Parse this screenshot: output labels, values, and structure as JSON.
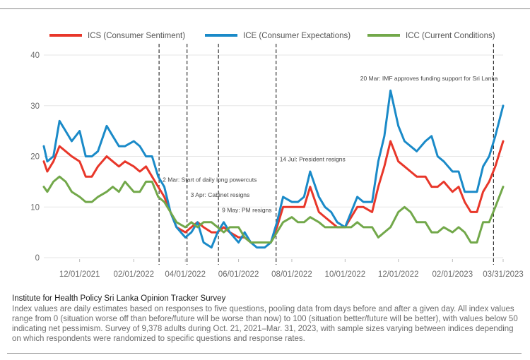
{
  "chart_data": {
    "type": "line",
    "ylim": [
      0,
      40
    ],
    "yticks": [
      0,
      10,
      20,
      30,
      40
    ],
    "x_range": [
      "2021-10-21",
      "2023-03-31"
    ],
    "x_tick_labels": [
      "12/01/2021",
      "02/01/2022",
      "04/01/2022",
      "06/01/2022",
      "08/01/2022",
      "10/01/2022",
      "12/01/2022",
      "02/01/2023",
      "03/31/2023"
    ],
    "x_tick_dates": [
      "2021-12-01",
      "2022-02-01",
      "2022-04-01",
      "2022-06-01",
      "2022-08-01",
      "2022-10-01",
      "2022-12-01",
      "2023-02-01",
      "2023-03-31"
    ],
    "grid": "horizontal",
    "legend_position": "top",
    "series": [
      {
        "name": "ICS (Consumer Sentiment)",
        "color": "#e8372a",
        "points": [
          [
            "2021-10-21",
            19
          ],
          [
            "2021-10-25",
            17
          ],
          [
            "2021-11-01",
            19
          ],
          [
            "2021-11-08",
            22
          ],
          [
            "2021-11-15",
            21
          ],
          [
            "2021-11-22",
            20
          ],
          [
            "2021-12-01",
            19
          ],
          [
            "2021-12-08",
            16
          ],
          [
            "2021-12-15",
            16
          ],
          [
            "2021-12-22",
            18
          ],
          [
            "2022-01-01",
            20
          ],
          [
            "2022-01-08",
            19
          ],
          [
            "2022-01-15",
            18
          ],
          [
            "2022-01-22",
            19
          ],
          [
            "2022-02-01",
            18
          ],
          [
            "2022-02-08",
            17
          ],
          [
            "2022-02-15",
            18
          ],
          [
            "2022-02-22",
            16
          ],
          [
            "2022-03-01",
            14
          ],
          [
            "2022-03-08",
            12
          ],
          [
            "2022-03-15",
            9
          ],
          [
            "2022-03-22",
            6
          ],
          [
            "2022-04-01",
            5
          ],
          [
            "2022-04-08",
            6
          ],
          [
            "2022-04-15",
            7
          ],
          [
            "2022-04-22",
            6
          ],
          [
            "2022-05-01",
            5
          ],
          [
            "2022-05-08",
            5
          ],
          [
            "2022-05-15",
            6
          ],
          [
            "2022-05-22",
            5
          ],
          [
            "2022-06-01",
            4
          ],
          [
            "2022-06-08",
            4
          ],
          [
            "2022-06-15",
            3
          ],
          [
            "2022-06-22",
            3
          ],
          [
            "2022-07-01",
            3
          ],
          [
            "2022-07-08",
            3
          ],
          [
            "2022-07-15",
            6
          ],
          [
            "2022-07-22",
            10
          ],
          [
            "2022-08-01",
            10
          ],
          [
            "2022-08-08",
            10
          ],
          [
            "2022-08-15",
            10
          ],
          [
            "2022-08-22",
            14
          ],
          [
            "2022-09-01",
            9
          ],
          [
            "2022-09-08",
            8
          ],
          [
            "2022-09-15",
            7
          ],
          [
            "2022-09-22",
            6
          ],
          [
            "2022-10-01",
            6
          ],
          [
            "2022-10-08",
            8
          ],
          [
            "2022-10-15",
            10
          ],
          [
            "2022-10-22",
            10
          ],
          [
            "2022-11-01",
            9
          ],
          [
            "2022-11-08",
            14
          ],
          [
            "2022-11-15",
            18
          ],
          [
            "2022-11-22",
            23
          ],
          [
            "2022-12-01",
            19
          ],
          [
            "2022-12-08",
            18
          ],
          [
            "2022-12-15",
            17
          ],
          [
            "2022-12-22",
            16
          ],
          [
            "2023-01-01",
            16
          ],
          [
            "2023-01-08",
            14
          ],
          [
            "2023-01-15",
            14
          ],
          [
            "2023-01-22",
            15
          ],
          [
            "2023-02-01",
            13
          ],
          [
            "2023-02-08",
            14
          ],
          [
            "2023-02-15",
            11
          ],
          [
            "2023-02-22",
            9
          ],
          [
            "2023-03-01",
            9
          ],
          [
            "2023-03-08",
            13
          ],
          [
            "2023-03-15",
            15
          ],
          [
            "2023-03-22",
            18
          ],
          [
            "2023-03-31",
            23
          ]
        ]
      },
      {
        "name": "ICE (Consumer Expectations)",
        "color": "#1a8ac8",
        "points": [
          [
            "2021-10-21",
            22
          ],
          [
            "2021-10-25",
            19
          ],
          [
            "2021-11-01",
            20
          ],
          [
            "2021-11-08",
            27
          ],
          [
            "2021-11-15",
            25
          ],
          [
            "2021-11-22",
            23
          ],
          [
            "2021-12-01",
            25
          ],
          [
            "2021-12-08",
            20
          ],
          [
            "2021-12-15",
            20
          ],
          [
            "2021-12-22",
            21
          ],
          [
            "2022-01-01",
            26
          ],
          [
            "2022-01-08",
            24
          ],
          [
            "2022-01-15",
            22
          ],
          [
            "2022-01-22",
            22
          ],
          [
            "2022-02-01",
            23
          ],
          [
            "2022-02-08",
            22
          ],
          [
            "2022-02-15",
            20
          ],
          [
            "2022-02-22",
            20
          ],
          [
            "2022-03-01",
            16
          ],
          [
            "2022-03-08",
            14
          ],
          [
            "2022-03-15",
            9
          ],
          [
            "2022-03-22",
            6
          ],
          [
            "2022-04-01",
            4
          ],
          [
            "2022-04-08",
            5
          ],
          [
            "2022-04-15",
            7
          ],
          [
            "2022-04-22",
            3
          ],
          [
            "2022-05-01",
            2
          ],
          [
            "2022-05-08",
            5
          ],
          [
            "2022-05-15",
            7
          ],
          [
            "2022-05-22",
            5
          ],
          [
            "2022-06-01",
            3
          ],
          [
            "2022-06-08",
            5
          ],
          [
            "2022-06-15",
            3
          ],
          [
            "2022-06-22",
            2
          ],
          [
            "2022-07-01",
            2
          ],
          [
            "2022-07-08",
            3
          ],
          [
            "2022-07-15",
            7
          ],
          [
            "2022-07-22",
            12
          ],
          [
            "2022-08-01",
            11
          ],
          [
            "2022-08-08",
            11
          ],
          [
            "2022-08-15",
            12
          ],
          [
            "2022-08-22",
            17
          ],
          [
            "2022-09-01",
            12
          ],
          [
            "2022-09-08",
            10
          ],
          [
            "2022-09-15",
            9
          ],
          [
            "2022-09-22",
            7
          ],
          [
            "2022-10-01",
            6
          ],
          [
            "2022-10-08",
            9
          ],
          [
            "2022-10-15",
            12
          ],
          [
            "2022-10-22",
            11
          ],
          [
            "2022-11-01",
            11
          ],
          [
            "2022-11-08",
            19
          ],
          [
            "2022-11-15",
            24
          ],
          [
            "2022-11-22",
            33
          ],
          [
            "2022-12-01",
            26
          ],
          [
            "2022-12-08",
            23
          ],
          [
            "2022-12-15",
            22
          ],
          [
            "2022-12-22",
            21
          ],
          [
            "2023-01-01",
            23
          ],
          [
            "2023-01-08",
            24
          ],
          [
            "2023-01-15",
            20
          ],
          [
            "2023-01-22",
            19
          ],
          [
            "2023-02-01",
            17
          ],
          [
            "2023-02-08",
            17
          ],
          [
            "2023-02-15",
            13
          ],
          [
            "2023-02-22",
            13
          ],
          [
            "2023-03-01",
            13
          ],
          [
            "2023-03-08",
            18
          ],
          [
            "2023-03-15",
            20
          ],
          [
            "2023-03-22",
            24
          ],
          [
            "2023-03-31",
            30
          ]
        ]
      },
      {
        "name": "ICC (Current Conditions)",
        "color": "#72a84a",
        "points": [
          [
            "2021-10-21",
            14
          ],
          [
            "2021-10-25",
            13
          ],
          [
            "2021-11-01",
            15
          ],
          [
            "2021-11-08",
            16
          ],
          [
            "2021-11-15",
            15
          ],
          [
            "2021-11-22",
            13
          ],
          [
            "2021-12-01",
            12
          ],
          [
            "2021-12-08",
            11
          ],
          [
            "2021-12-15",
            11
          ],
          [
            "2021-12-22",
            12
          ],
          [
            "2022-01-01",
            13
          ],
          [
            "2022-01-08",
            14
          ],
          [
            "2022-01-15",
            13
          ],
          [
            "2022-01-22",
            15
          ],
          [
            "2022-02-01",
            13
          ],
          [
            "2022-02-08",
            13
          ],
          [
            "2022-02-15",
            15
          ],
          [
            "2022-02-22",
            15
          ],
          [
            "2022-03-01",
            12
          ],
          [
            "2022-03-08",
            11
          ],
          [
            "2022-03-15",
            9
          ],
          [
            "2022-03-22",
            7
          ],
          [
            "2022-04-01",
            6
          ],
          [
            "2022-04-08",
            7
          ],
          [
            "2022-04-15",
            6
          ],
          [
            "2022-04-22",
            7
          ],
          [
            "2022-05-01",
            7
          ],
          [
            "2022-05-08",
            6
          ],
          [
            "2022-05-15",
            5
          ],
          [
            "2022-05-22",
            6
          ],
          [
            "2022-06-01",
            6
          ],
          [
            "2022-06-08",
            4
          ],
          [
            "2022-06-15",
            3
          ],
          [
            "2022-06-22",
            3
          ],
          [
            "2022-07-01",
            3
          ],
          [
            "2022-07-08",
            3
          ],
          [
            "2022-07-15",
            5
          ],
          [
            "2022-07-22",
            7
          ],
          [
            "2022-08-01",
            8
          ],
          [
            "2022-08-08",
            7
          ],
          [
            "2022-08-15",
            7
          ],
          [
            "2022-08-22",
            8
          ],
          [
            "2022-09-01",
            7
          ],
          [
            "2022-09-08",
            6
          ],
          [
            "2022-09-15",
            6
          ],
          [
            "2022-09-22",
            6
          ],
          [
            "2022-10-01",
            6
          ],
          [
            "2022-10-08",
            6
          ],
          [
            "2022-10-15",
            7
          ],
          [
            "2022-10-22",
            6
          ],
          [
            "2022-11-01",
            6
          ],
          [
            "2022-11-08",
            4
          ],
          [
            "2022-11-15",
            5
          ],
          [
            "2022-11-22",
            6
          ],
          [
            "2022-12-01",
            9
          ],
          [
            "2022-12-08",
            10
          ],
          [
            "2022-12-15",
            9
          ],
          [
            "2022-12-22",
            7
          ],
          [
            "2023-01-01",
            7
          ],
          [
            "2023-01-08",
            5
          ],
          [
            "2023-01-15",
            5
          ],
          [
            "2023-01-22",
            6
          ],
          [
            "2023-02-01",
            5
          ],
          [
            "2023-02-08",
            6
          ],
          [
            "2023-02-15",
            5
          ],
          [
            "2023-02-22",
            3
          ],
          [
            "2023-03-01",
            3
          ],
          [
            "2023-03-08",
            7
          ],
          [
            "2023-03-15",
            7
          ],
          [
            "2023-03-22",
            10
          ],
          [
            "2023-03-31",
            14
          ]
        ]
      }
    ],
    "annotations": [
      {
        "date": "2022-03-02",
        "label": "2 Mar: Start of daily long powercuts",
        "value": 15
      },
      {
        "date": "2022-04-03",
        "label": "3 Apr: Cabinet resigns",
        "value": 12
      },
      {
        "date": "2022-05-09",
        "label": "9 May: PM resigns",
        "value": 9
      },
      {
        "date": "2022-07-14",
        "label": "14 Jul: President resigns",
        "value": 19
      },
      {
        "date": "2023-03-20",
        "label": "20 Mar: IMF approves funding support for Sri Lanka",
        "value": 35
      }
    ]
  },
  "caption": {
    "title": "Institute for Health Policy Sri Lanka Opinion Tracker Survey",
    "body": "Index values are daily estimates based on responses to five questions, pooling data from days before and after a given day. All index values range from 0 (situation worse off than before/future will be worse than now) to 100 (situation better/future will be better), with values below 50 indicating net pessimism. Survey of 9,378 adults during Oct. 21, 2021–Mar. 31, 2023, with sample sizes varying between indices depending on which respondents were randomized to specific questions and response rates."
  }
}
